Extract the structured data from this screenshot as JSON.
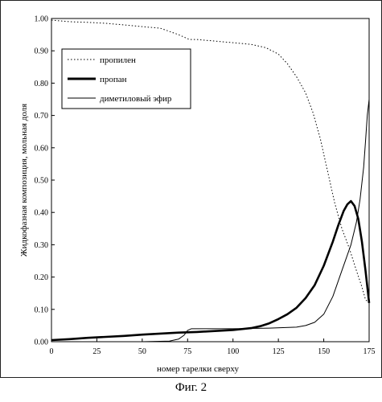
{
  "chart_data": {
    "type": "line",
    "title": "",
    "xlabel": "номер тарелки сверху",
    "ylabel": "Жидкофазная композиция, мольная доля",
    "xlim": [
      0,
      175
    ],
    "ylim": [
      0,
      1.0
    ],
    "x_ticks": [
      "0",
      "25",
      "50",
      "75",
      "100",
      "125",
      "150",
      "175"
    ],
    "x_tick_values": [
      0,
      25,
      50,
      75,
      100,
      125,
      150,
      175
    ],
    "y_ticks": [
      "0.00",
      "0.10",
      "0.20",
      "0.30",
      "0.40",
      "0.50",
      "0.60",
      "0.70",
      "0.80",
      "0.90",
      "1.00"
    ],
    "y_tick_values": [
      0,
      0.1,
      0.2,
      0.3,
      0.4,
      0.5,
      0.6,
      0.7,
      0.8,
      0.9,
      1.0
    ],
    "grid": false,
    "legend_position": "top-left",
    "series": [
      {
        "name": "пропилен",
        "style": "dotted",
        "color": "#000000",
        "x": [
          0,
          10,
          20,
          30,
          40,
          50,
          60,
          65,
          70,
          74,
          76,
          80,
          90,
          100,
          110,
          118,
          125,
          130,
          135,
          140,
          144,
          148,
          152,
          156,
          160,
          164,
          168,
          171,
          173,
          175
        ],
        "y": [
          0.995,
          0.99,
          0.988,
          0.985,
          0.98,
          0.975,
          0.97,
          0.96,
          0.95,
          0.94,
          0.935,
          0.935,
          0.93,
          0.925,
          0.92,
          0.91,
          0.89,
          0.86,
          0.82,
          0.77,
          0.71,
          0.63,
          0.53,
          0.43,
          0.35,
          0.29,
          0.22,
          0.17,
          0.13,
          0.12
        ]
      },
      {
        "name": "пропан",
        "style": "bold",
        "color": "#000000",
        "x": [
          0,
          10,
          20,
          30,
          40,
          50,
          60,
          70,
          80,
          90,
          100,
          110,
          115,
          120,
          125,
          130,
          135,
          140,
          145,
          150,
          155,
          158,
          161,
          163,
          165,
          167,
          169,
          171,
          173,
          175
        ],
        "y": [
          0.005,
          0.008,
          0.012,
          0.015,
          0.018,
          0.022,
          0.025,
          0.028,
          0.03,
          0.033,
          0.036,
          0.042,
          0.048,
          0.057,
          0.07,
          0.085,
          0.105,
          0.135,
          0.175,
          0.235,
          0.31,
          0.36,
          0.405,
          0.425,
          0.435,
          0.42,
          0.38,
          0.31,
          0.22,
          0.12
        ]
      },
      {
        "name": "диметиловый эфир",
        "style": "thin",
        "color": "#000000",
        "x": [
          0,
          50,
          65,
          70,
          73,
          75,
          77,
          85,
          100,
          120,
          135,
          140,
          145,
          150,
          155,
          160,
          165,
          168,
          170,
          172,
          173,
          174,
          175
        ],
        "y": [
          0.0,
          0.0,
          0.002,
          0.008,
          0.02,
          0.035,
          0.04,
          0.04,
          0.04,
          0.042,
          0.045,
          0.05,
          0.06,
          0.085,
          0.14,
          0.22,
          0.3,
          0.37,
          0.44,
          0.54,
          0.62,
          0.7,
          0.75
        ]
      }
    ]
  },
  "caption": "Фиг. 2"
}
